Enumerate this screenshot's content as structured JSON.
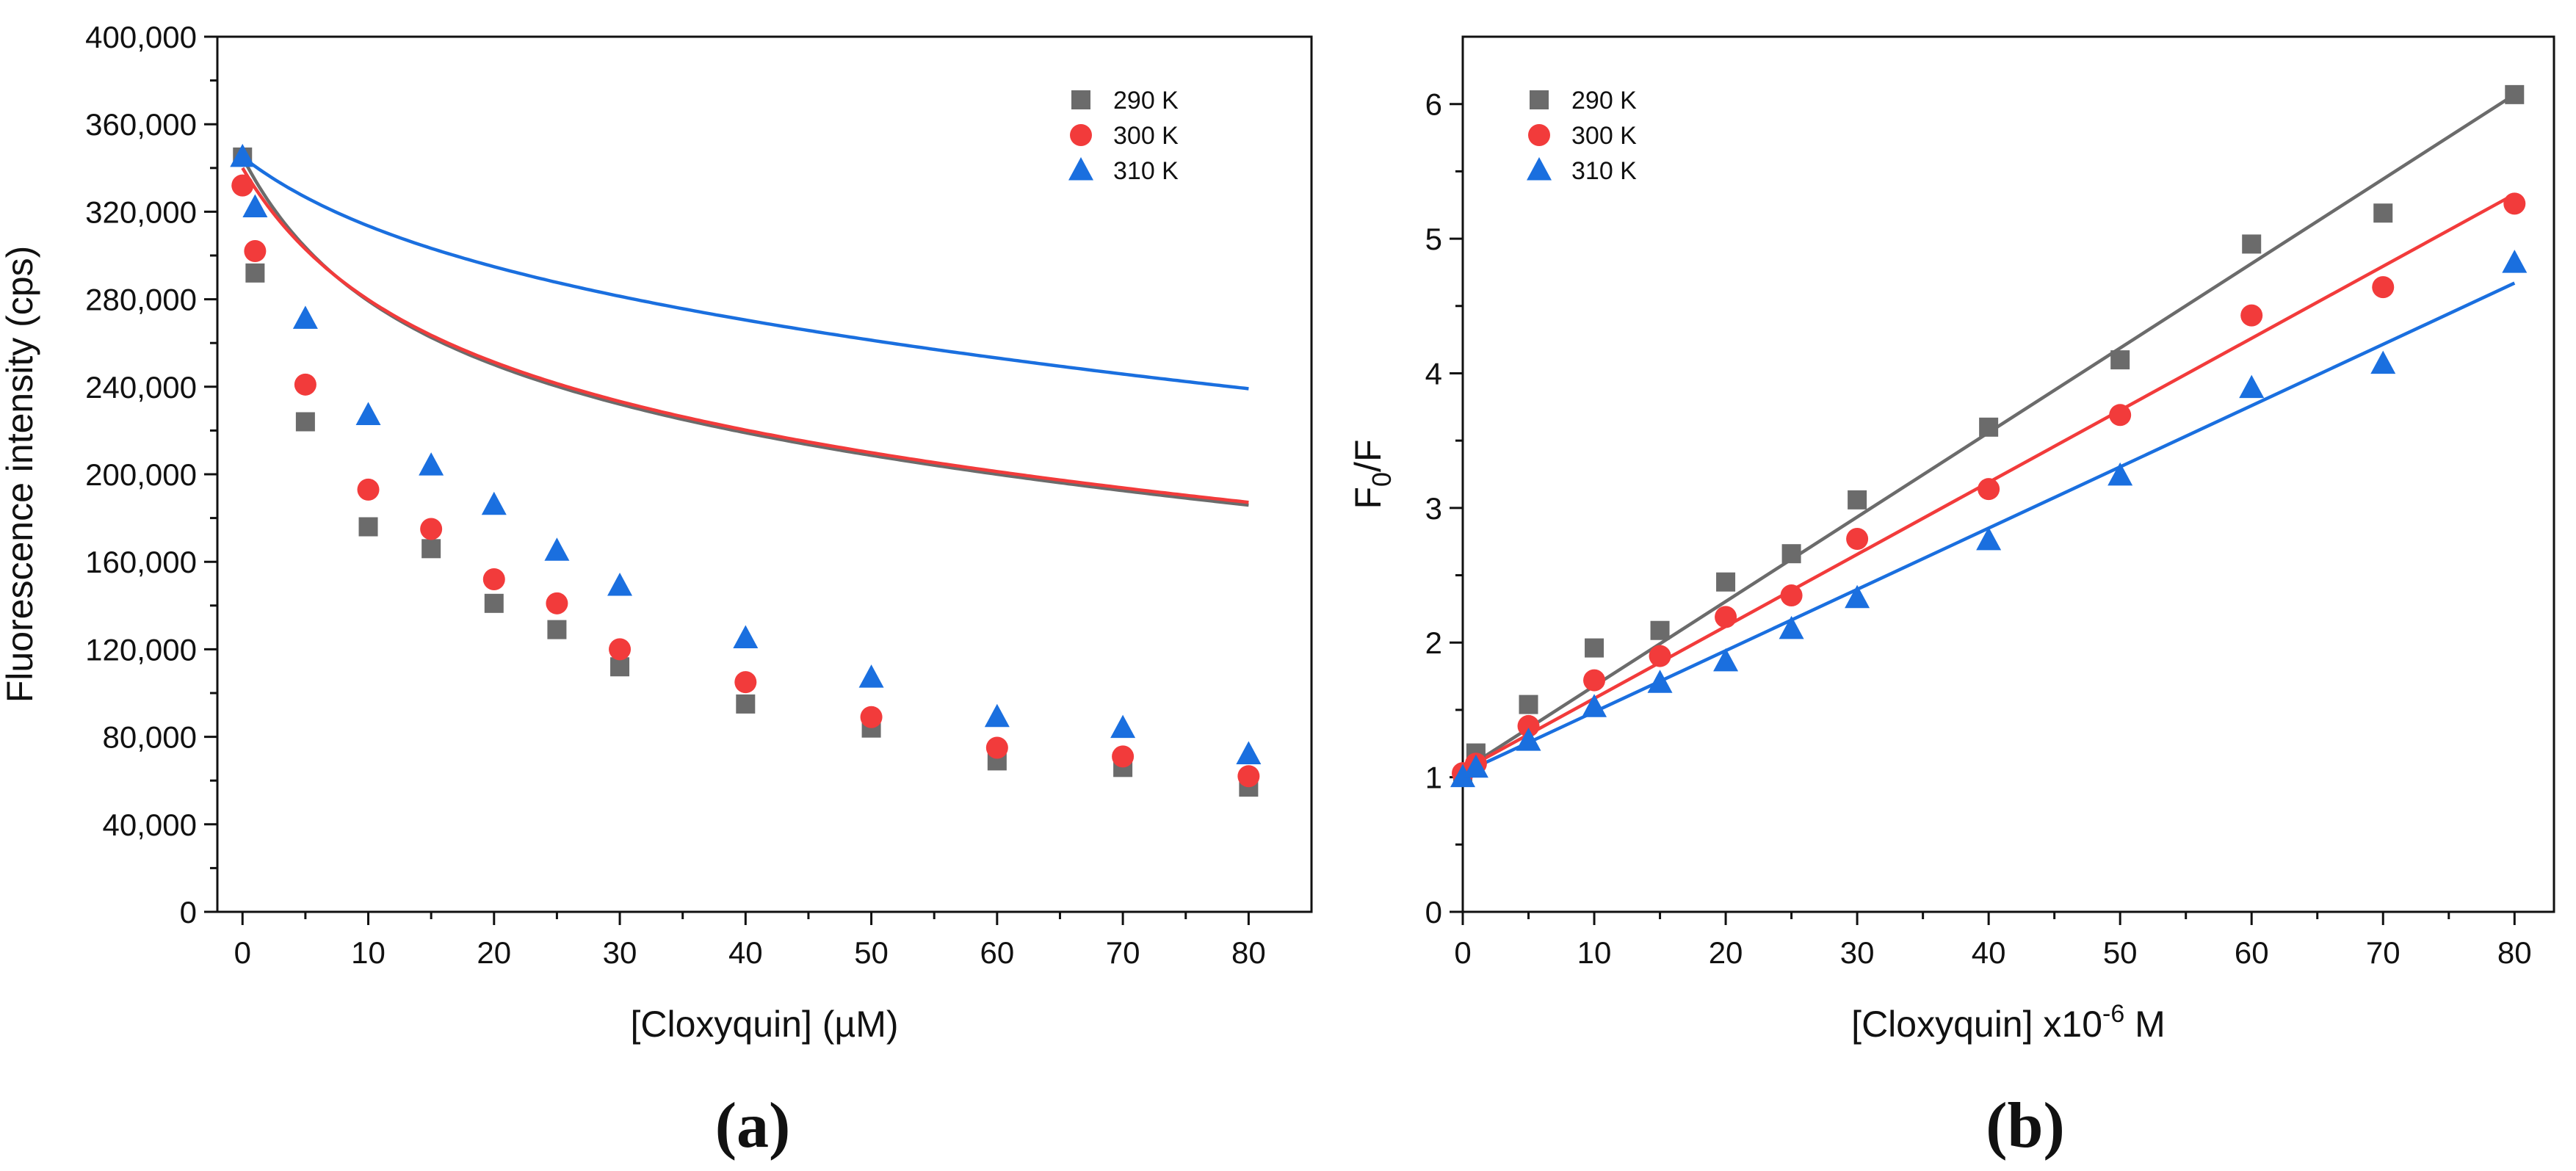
{
  "chart_data": [
    {
      "type": "scatter",
      "panel_label": "(a)",
      "xlabel": "[Cloxyquin] (µM)",
      "ylabel": "Fluorescence intensity (cps)",
      "xlim": [
        -2,
        85
      ],
      "ylim": [
        0,
        400000
      ],
      "x_ticks": [
        0,
        10,
        20,
        30,
        40,
        50,
        60,
        70,
        80
      ],
      "x_tick_labels": [
        "0",
        "10",
        "20",
        "30",
        "40",
        "50",
        "60",
        "70",
        "80"
      ],
      "y_ticks": [
        0,
        40000,
        80000,
        120000,
        160000,
        200000,
        240000,
        280000,
        320000,
        360000,
        400000
      ],
      "y_tick_labels": [
        "0",
        "40,000",
        "80,000",
        "120,000",
        "160,000",
        "200,000",
        "240,000",
        "280,000",
        "320,000",
        "360,000",
        "400,000"
      ],
      "legend_position": "top-right",
      "x": [
        0,
        1,
        5,
        10,
        15,
        20,
        25,
        30,
        40,
        50,
        60,
        70,
        80
      ],
      "series": [
        {
          "name": "290 K",
          "marker": "square",
          "color": "#6b6b6b",
          "values": [
            345000,
            292000,
            224000,
            176000,
            166000,
            141000,
            129000,
            112000,
            95000,
            84000,
            69000,
            66000,
            57000
          ],
          "fit": {
            "y0": 345000,
            "a": 0.39,
            "b": 0.0785
          }
        },
        {
          "name": "300 K",
          "marker": "circle",
          "color": "#f23b3b",
          "values": [
            332000,
            302000,
            241000,
            193000,
            175000,
            152000,
            141000,
            120000,
            105000,
            89000,
            75000,
            71000,
            62000
          ],
          "fit": {
            "y0": 340000,
            "a": 0.39,
            "b": 0.0689
          }
        },
        {
          "name": "310 K",
          "marker": "triangle",
          "color": "#1a6fdf",
          "values": [
            345000,
            322000,
            271000,
            227000,
            204000,
            186000,
            165000,
            149000,
            125000,
            107000,
            89000,
            84000,
            72000
          ],
          "fit": {
            "y0": 345000,
            "a": 0.2,
            "b": 0.0535
          }
        }
      ]
    },
    {
      "type": "scatter",
      "panel_label": "(b)",
      "xlabel": "[Cloxyquin] x10",
      "xlabel_superscript": "-6",
      "xlabel_suffix": " M",
      "ylabel": "F",
      "ylabel_subscript": "0",
      "ylabel_suffix": "/F",
      "xlim": [
        0,
        83
      ],
      "ylim": [
        0,
        6.5
      ],
      "x_ticks": [
        0,
        10,
        20,
        30,
        40,
        50,
        60,
        70,
        80
      ],
      "x_tick_labels": [
        "0",
        "10",
        "20",
        "30",
        "40",
        "50",
        "60",
        "70",
        "80"
      ],
      "y_ticks": [
        0,
        1,
        2,
        3,
        4,
        5,
        6
      ],
      "y_tick_labels": [
        "0",
        "1",
        "2",
        "3",
        "4",
        "5",
        "6"
      ],
      "legend_position": "top-left",
      "x": [
        0,
        1,
        5,
        10,
        15,
        20,
        25,
        30,
        40,
        50,
        60,
        70,
        80
      ],
      "series": [
        {
          "name": "290 K",
          "marker": "square",
          "color": "#6b6b6b",
          "values": [
            1.0,
            1.18,
            1.54,
            1.96,
            2.09,
            2.45,
            2.66,
            3.06,
            3.6,
            4.1,
            4.96,
            5.19,
            6.07
          ],
          "fit_line": {
            "x": [
              0,
              80
            ],
            "y": [
              1.05,
              6.07
            ]
          }
        },
        {
          "name": "300 K",
          "marker": "circle",
          "color": "#f23b3b",
          "values": [
            1.03,
            1.1,
            1.38,
            1.72,
            1.9,
            2.19,
            2.35,
            2.77,
            3.14,
            3.69,
            4.43,
            4.64,
            5.26
          ],
          "fit_line": {
            "x": [
              0,
              80
            ],
            "y": [
              1.05,
              5.33
            ]
          }
        },
        {
          "name": "310 K",
          "marker": "triangle",
          "color": "#1a6fdf",
          "values": [
            1.0,
            1.07,
            1.27,
            1.52,
            1.7,
            1.86,
            2.1,
            2.33,
            2.76,
            3.24,
            3.89,
            4.07,
            4.82
          ],
          "fit_line": {
            "x": [
              0,
              80
            ],
            "y": [
              1.03,
              4.67
            ]
          }
        }
      ]
    }
  ]
}
